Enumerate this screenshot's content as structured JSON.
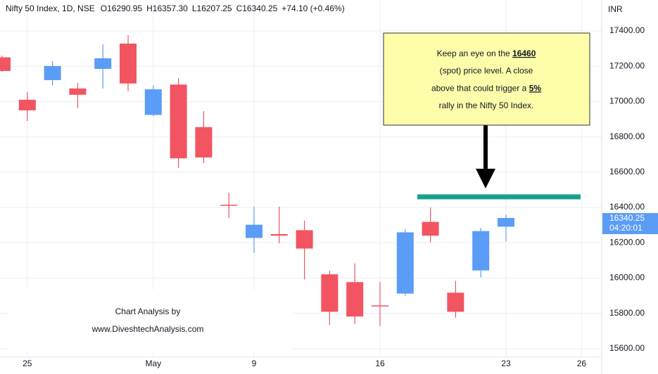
{
  "chart_data": {
    "type": "candlestick",
    "symbol": "Nifty 50 Index, 1D, NSE",
    "legend_values": [
      "O16290.95",
      "H16357.30",
      "L16207.25",
      "C16340.25",
      "+74.10 (+0.46%)"
    ],
    "currency": "INR",
    "categories": [
      null,
      "25",
      null,
      null,
      null,
      null,
      "May",
      null,
      null,
      null,
      "9",
      null,
      null,
      null,
      null,
      "16",
      null,
      null,
      null,
      null,
      "23",
      null,
      null,
      "26"
    ],
    "open": [
      17250,
      17010,
      17121,
      17074,
      17185,
      17328,
      16924,
      17096,
      16855,
      16415,
      16227,
      16249,
      16271,
      16021,
      15977,
      15845,
      15912,
      16318,
      15917,
      16043,
      16290.95,
      null,
      null,
      null
    ],
    "high": [
      17260,
      17054,
      17229,
      17105,
      17324,
      17376,
      17092,
      17132,
      16945,
      16484,
      16403,
      16404,
      16325,
      16041,
      16084,
      15977,
      16278,
      16400,
      15985,
      16284,
      16357.3,
      null,
      null,
      null
    ],
    "low": [
      17170,
      16890,
      17090,
      16962,
      17074,
      17058,
      16917,
      16623,
      16651,
      16340,
      16143,
      16197,
      15992,
      15735,
      15740,
      15728,
      15900,
      16202,
      15775,
      16004,
      16207.25,
      null,
      null,
      null
    ],
    "close": [
      17173,
      16950,
      17201,
      17038,
      17245,
      17102,
      17069,
      16678,
      16683,
      16411,
      16302,
      16240,
      16167,
      15809,
      15782,
      15842,
      16259,
      16240,
      15809,
      16266,
      16340.25,
      null,
      null,
      null
    ],
    "up_color": "#5b9cf6",
    "down_color": "#f25461",
    "ylim": [
      15552,
      17575
    ],
    "yticks": [
      {
        "value": 15600,
        "label": "15600.00"
      },
      {
        "value": 15800,
        "label": "15800.00"
      },
      {
        "value": 16000,
        "label": "16000.00"
      },
      {
        "value": 16200,
        "label": "16200.00"
      },
      {
        "value": 16400,
        "label": "16400.00"
      },
      {
        "value": 16600,
        "label": "16600.00"
      },
      {
        "value": 16800,
        "label": "16800.00"
      },
      {
        "value": 17000,
        "label": "17000.00"
      },
      {
        "value": 17200,
        "label": "17200.00"
      },
      {
        "value": 17400,
        "label": "17400.00"
      }
    ],
    "grid": true,
    "last_price": {
      "value": 16340.25,
      "label": "16340.25"
    },
    "countdown": "04:20:01",
    "level_line": {
      "value": 16460,
      "color": "#13a38a"
    },
    "callout": {
      "lines": [
        [
          "Keep an eye on the ",
          "16460"
        ],
        [
          "(spot) price level. A close"
        ],
        [
          "above that could trigger a ",
          "5%"
        ],
        [
          "rally in the Nifty 50 Index."
        ]
      ]
    },
    "watermark": [
      "Chart Analysis by",
      "www.DiveshtechAnalysis.com"
    ]
  }
}
